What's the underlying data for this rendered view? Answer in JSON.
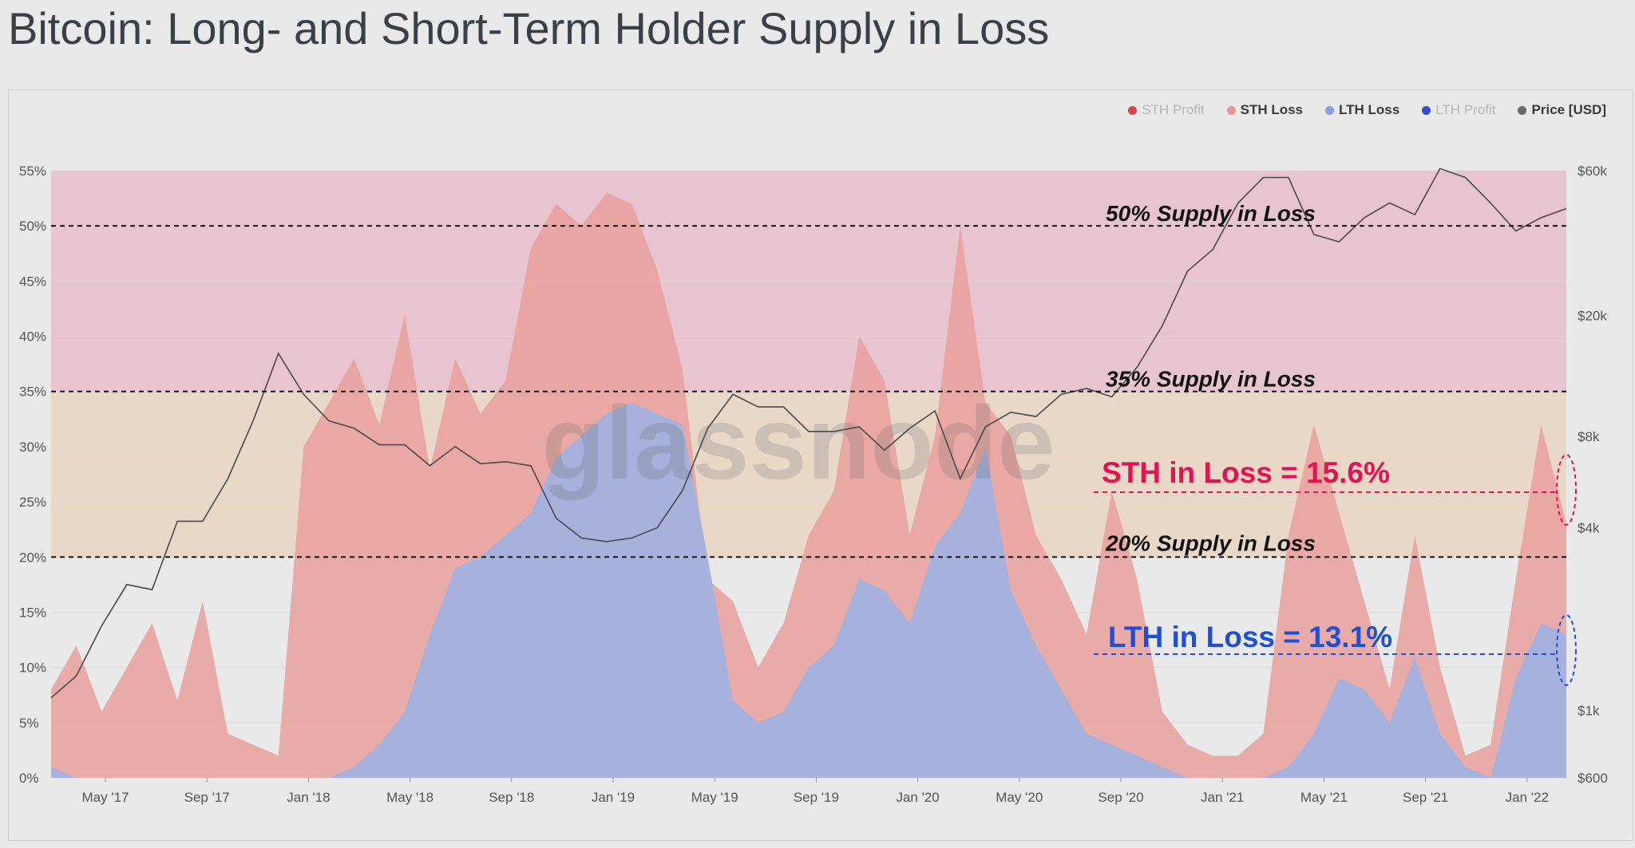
{
  "title": "Bitcoin: Long- and Short-Term Holder Supply in Loss",
  "legend": [
    {
      "label": "STH Profit",
      "color": "#e0433d",
      "muted": true
    },
    {
      "label": "STH Loss",
      "color": "#e89690",
      "muted": false
    },
    {
      "label": "LTH Loss",
      "color": "#8ea0de",
      "muted": false
    },
    {
      "label": "LTH Profit",
      "color": "#2c4fd6",
      "muted": true
    },
    {
      "label": "Price [USD]",
      "color": "#6a6a6a",
      "muted": false
    }
  ],
  "watermark": "glassnode",
  "colors": {
    "zone_high": "#e8c3d0",
    "zone_mid": "#e9d8c8",
    "sth_loss": "#e9a09c",
    "lth_loss": "#a3b1df",
    "price": "#4a4a4a",
    "sth_annotation": "#e3134f",
    "lth_annotation": "#1f4fd8"
  },
  "annotations": {
    "line50": "50% Supply in Loss",
    "line35": "35% Supply in Loss",
    "line20": "20% Supply in Loss",
    "sth": "STH in Loss = 15.6%",
    "lth": "LTH in Loss = 13.1%"
  },
  "chart_data": {
    "type": "area",
    "y_left": {
      "ticks": [
        "0%",
        "5%",
        "10%",
        "15%",
        "20%",
        "25%",
        "30%",
        "35%",
        "40%",
        "45%",
        "50%",
        "55%"
      ],
      "range": [
        0,
        55
      ]
    },
    "y_right": {
      "ticks": [
        "$600",
        "$1k",
        "$4k",
        "$8k",
        "$20k",
        "$60k"
      ],
      "log": true
    },
    "x_ticks": [
      "May '17",
      "Sep '17",
      "Jan '18",
      "May '18",
      "Sep '18",
      "Jan '19",
      "May '19",
      "Sep '19",
      "Jan '20",
      "May '20",
      "Sep '20",
      "Jan '21",
      "May '21",
      "Sep '21",
      "Jan '22"
    ],
    "reference_lines": [
      20,
      35,
      50
    ],
    "zones": [
      {
        "from": 20,
        "to": 35
      },
      {
        "from": 35,
        "to": 55
      }
    ],
    "x": [
      "Mar '17",
      "Apr '17",
      "May '17",
      "Jun '17",
      "Jul '17",
      "Aug '17",
      "Sep '17",
      "Oct '17",
      "Nov '17",
      "Dec '17",
      "Jan '18",
      "Feb '18",
      "Mar '18",
      "Apr '18",
      "May '18",
      "Jun '18",
      "Jul '18",
      "Aug '18",
      "Sep '18",
      "Oct '18",
      "Nov '18",
      "Dec '18",
      "Jan '19",
      "Feb '19",
      "Mar '19",
      "Apr '19",
      "May '19",
      "Jun '19",
      "Jul '19",
      "Aug '19",
      "Sep '19",
      "Oct '19",
      "Nov '19",
      "Dec '19",
      "Jan '20",
      "Feb '20",
      "Mar '20",
      "Apr '20",
      "May '20",
      "Jun '20",
      "Jul '20",
      "Aug '20",
      "Sep '20",
      "Oct '20",
      "Nov '20",
      "Dec '20",
      "Jan '21",
      "Feb '21",
      "Mar '21",
      "Apr '21",
      "May '21",
      "Jun '21",
      "Jul '21",
      "Aug '21",
      "Sep '21",
      "Oct '21",
      "Nov '21",
      "Dec '21",
      "Jan '22",
      "Feb '22",
      "Mar '22"
    ],
    "series": [
      {
        "name": "STH Loss",
        "values": [
          8,
          12,
          6,
          10,
          14,
          7,
          16,
          4,
          3,
          2,
          30,
          34,
          38,
          32,
          42,
          28,
          38,
          33,
          36,
          48,
          52,
          50,
          53,
          52,
          46,
          37,
          18,
          16,
          10,
          14,
          22,
          26,
          40,
          36,
          22,
          31,
          50,
          34,
          31,
          22,
          18,
          13,
          26,
          18,
          6,
          3,
          2,
          2,
          4,
          22,
          32,
          24,
          16,
          8,
          22,
          10,
          2,
          3,
          18,
          32,
          23
        ]
      },
      {
        "name": "LTH Loss",
        "values": [
          1,
          0,
          0,
          0,
          0,
          0,
          0,
          0,
          0,
          0,
          0,
          0,
          1,
          3,
          6,
          13,
          19,
          20,
          22,
          24,
          29,
          31,
          33,
          34,
          33,
          32,
          20,
          7,
          5,
          6,
          10,
          12,
          18,
          17,
          14,
          21,
          24,
          30,
          17,
          12,
          8,
          4,
          3,
          2,
          1,
          0,
          0,
          0,
          0,
          1,
          4,
          9,
          8,
          5,
          11,
          4,
          1,
          0,
          9,
          14,
          13
        ]
      },
      {
        "name": "Price [USD]",
        "values": [
          1100,
          1300,
          1900,
          2600,
          2500,
          4200,
          4200,
          5800,
          9000,
          15000,
          11000,
          9000,
          8500,
          7500,
          7500,
          6400,
          7400,
          6500,
          6600,
          6400,
          4300,
          3700,
          3600,
          3700,
          4000,
          5300,
          8500,
          11000,
          10000,
          10000,
          8300,
          8300,
          8600,
          7200,
          8500,
          9700,
          5800,
          8600,
          9600,
          9300,
          11000,
          11500,
          10800,
          13500,
          18500,
          28000,
          33000,
          47000,
          57000,
          57000,
          37000,
          35000,
          42000,
          47000,
          43000,
          61000,
          57000,
          47000,
          38000,
          42000,
          45000
        ]
      }
    ]
  }
}
